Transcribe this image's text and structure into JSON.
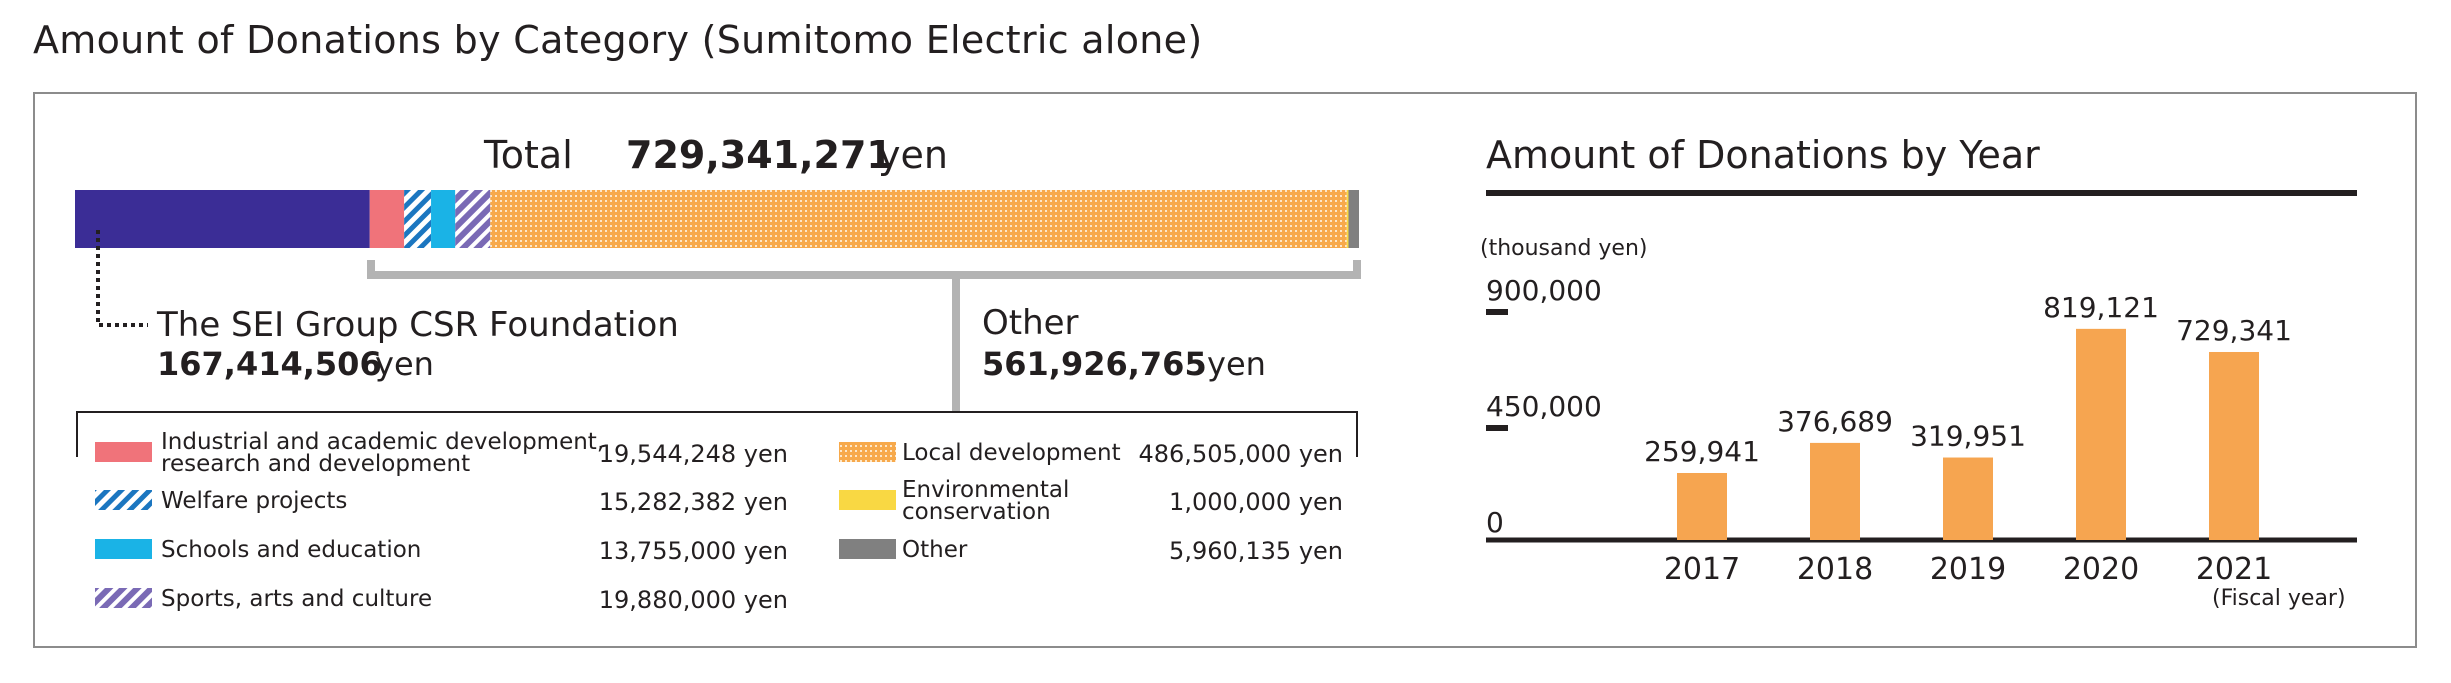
{
  "page_title": "Amount of Donations by Category (Sumitomo Electric alone)",
  "colors": {
    "foundation": "#3b2d96",
    "industrial": "#f0737a",
    "welfare": "#1b76c0",
    "schools": "#1ab3e6",
    "sports": "#7a6ab5",
    "local": "#f7a94b",
    "environment": "#f9d843",
    "other": "#808080",
    "bar": "#f6a550",
    "bracket": "#b3b3b3",
    "axis": "#231f20"
  },
  "stacked": {
    "total_label": "Total",
    "total_value": "729,341,271",
    "unit": "yen",
    "foundation": {
      "name": "The SEI Group CSR Foundation",
      "value": "167,414,506",
      "unit": "yen"
    },
    "other_group": {
      "name": "Other",
      "value": "561,926,765",
      "unit": "yen"
    }
  },
  "legend": {
    "left": [
      {
        "key": "industrial",
        "label_lines": [
          "Industrial and academic development,",
          "research and development"
        ],
        "value": "19,544,248 yen"
      },
      {
        "key": "welfare",
        "label_lines": [
          "Welfare projects"
        ],
        "value": "15,282,382 yen"
      },
      {
        "key": "schools",
        "label_lines": [
          "Schools and education"
        ],
        "value": "13,755,000 yen"
      },
      {
        "key": "sports",
        "label_lines": [
          "Sports, arts and culture"
        ],
        "value": "19,880,000 yen"
      }
    ],
    "right": [
      {
        "key": "local",
        "label_lines": [
          "Local development"
        ],
        "value": "486,505,000 yen"
      },
      {
        "key": "environment",
        "label_lines": [
          "Environmental",
          "conservation"
        ],
        "value": "1,000,000 yen"
      },
      {
        "key": "other",
        "label_lines": [
          "Other"
        ],
        "value": "5,960,135 yen"
      }
    ]
  },
  "chart_data": [
    {
      "type": "bar",
      "orientation": "horizontal-stacked",
      "title": "Total 729,341,271 yen",
      "categories": [
        "The SEI Group CSR Foundation",
        "Industrial and academic development, research and development",
        "Welfare projects",
        "Schools and education",
        "Sports, arts and culture",
        "Local development",
        "Environmental conservation",
        "Other"
      ],
      "values": [
        167414506,
        19544248,
        15282382,
        13755000,
        19880000,
        486505000,
        1000000,
        5960135
      ],
      "total": 729341271,
      "unit": "yen"
    },
    {
      "type": "bar",
      "title": "Amount of Donations by Year",
      "ylabel": "(thousand yen)",
      "xlabel": "(Fiscal year)",
      "categories": [
        "2017",
        "2018",
        "2019",
        "2020",
        "2021"
      ],
      "values": [
        259941,
        376689,
        319951,
        819121,
        729341
      ],
      "value_labels": [
        "259,941",
        "376,689",
        "319,951",
        "819,121",
        "729,341"
      ],
      "yticks": [
        0,
        450000,
        900000
      ],
      "ytick_labels": [
        "0",
        "450,000",
        "900,000"
      ],
      "ylim": [
        0,
        900000
      ]
    }
  ]
}
